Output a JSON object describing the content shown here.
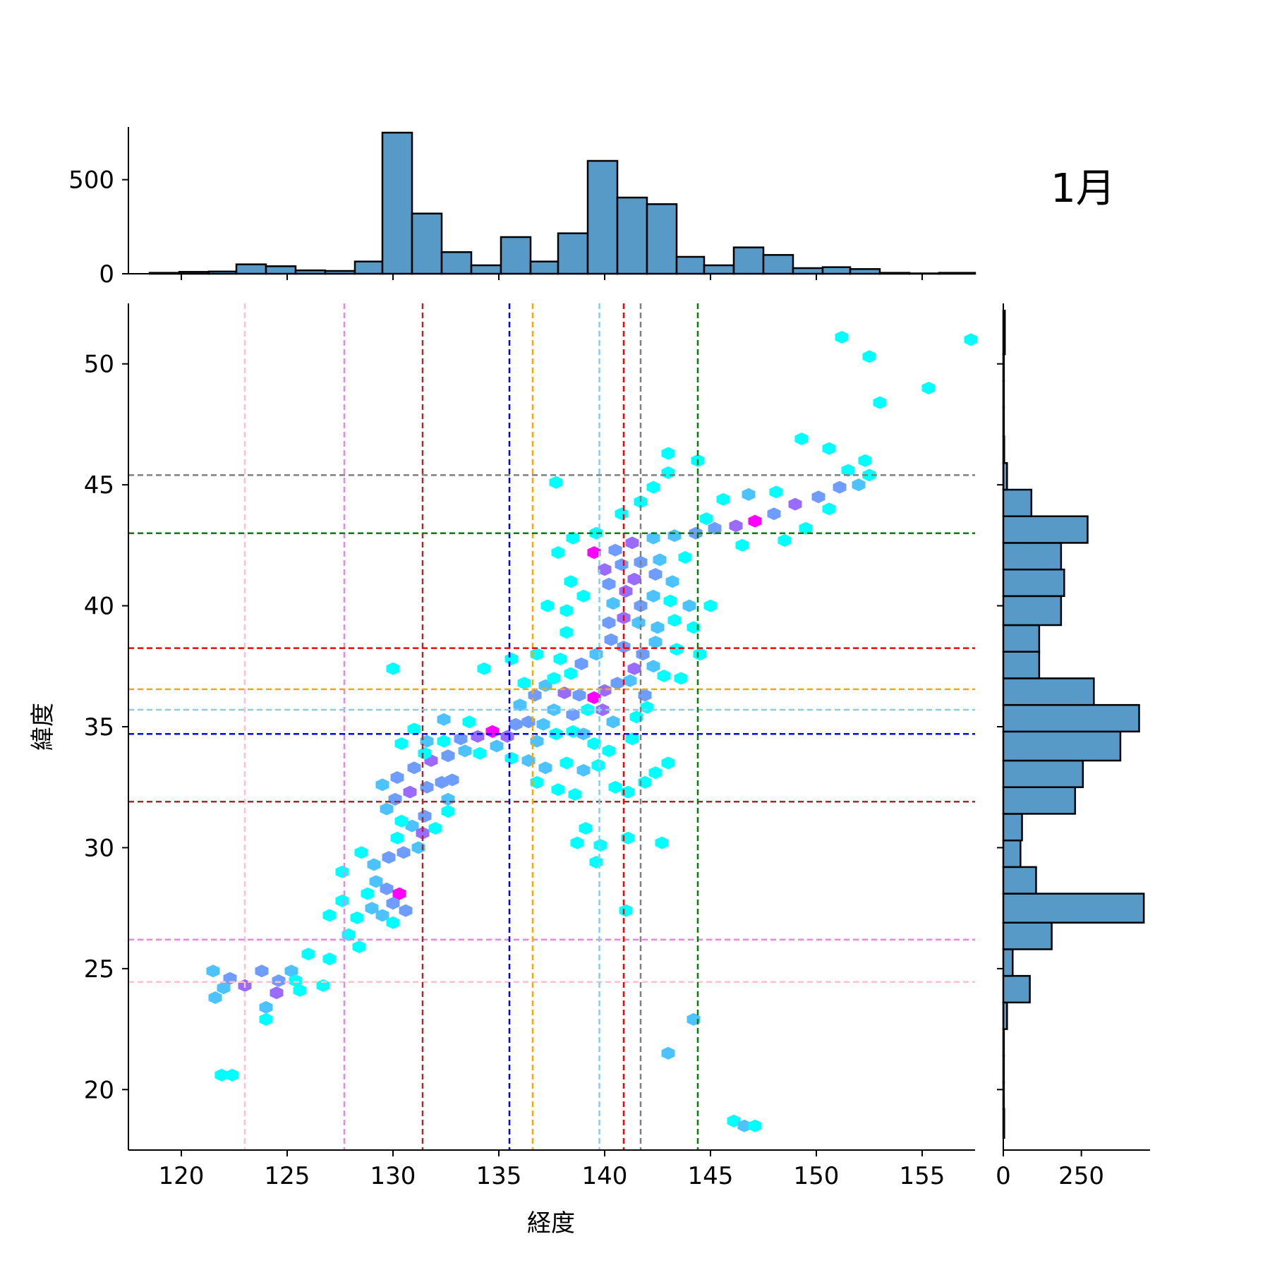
{
  "figure_label": "1月",
  "chart_data": [
    {
      "type": "hexbin",
      "xlabel": "経度",
      "ylabel": "緯度",
      "xlim": [
        117.5,
        157.5
      ],
      "ylim": [
        17.5,
        52.5
      ],
      "xticks": [
        120,
        125,
        130,
        135,
        140,
        145,
        150,
        155
      ],
      "yticks": [
        20,
        25,
        30,
        35,
        40,
        45,
        50
      ],
      "reference_lines": [
        {
          "color": "#ffc0cb",
          "lon": 123.0,
          "lat": 24.45
        },
        {
          "color": "#ee82ee",
          "lon": 127.7,
          "lat": 26.2
        },
        {
          "color": "#a52a2a",
          "lon": 131.4,
          "lat": 31.9
        },
        {
          "color": "#0000ff",
          "lon": 135.5,
          "lat": 34.7
        },
        {
          "color": "#ffa500",
          "lon": 136.6,
          "lat": 36.55
        },
        {
          "color": "#87ceeb",
          "lon": 139.75,
          "lat": 35.7
        },
        {
          "color": "#ff0000",
          "lon": 140.9,
          "lat": 38.25
        },
        {
          "color": "#808080",
          "lon": 141.7,
          "lat": 45.4
        },
        {
          "color": "#008000",
          "lon": 144.4,
          "lat": 43.0
        }
      ],
      "colormap": [
        "#00ffff",
        "#4cc3ff",
        "#6f9cff",
        "#9a6bff",
        "#ff00ff"
      ],
      "hexbins": [
        [
          121.5,
          24.9,
          1
        ],
        [
          122.3,
          24.6,
          2
        ],
        [
          123.0,
          24.3,
          3
        ],
        [
          123.8,
          24.9,
          2
        ],
        [
          124.6,
          24.5,
          2
        ],
        [
          125.2,
          24.9,
          1
        ],
        [
          121.6,
          23.8,
          1
        ],
        [
          122.0,
          24.2,
          1
        ],
        [
          124.0,
          23.4,
          1
        ],
        [
          124.0,
          22.9,
          0
        ],
        [
          125.6,
          24.1,
          0
        ],
        [
          126.0,
          25.6,
          0
        ],
        [
          126.7,
          24.3,
          0
        ],
        [
          122.4,
          20.6,
          0
        ],
        [
          121.9,
          20.6,
          0
        ],
        [
          124.5,
          24.0,
          3
        ],
        [
          125.4,
          24.5,
          0
        ],
        [
          127.0,
          27.2,
          0
        ],
        [
          127.6,
          27.8,
          0
        ],
        [
          128.3,
          27.1,
          0
        ],
        [
          127.9,
          26.4,
          0
        ],
        [
          128.8,
          28.1,
          0
        ],
        [
          129.2,
          28.6,
          1
        ],
        [
          129.7,
          28.3,
          2
        ],
        [
          130.3,
          28.1,
          4
        ],
        [
          130.0,
          27.7,
          2
        ],
        [
          129.5,
          27.2,
          1
        ],
        [
          130.6,
          27.4,
          2
        ],
        [
          130.0,
          26.9,
          0
        ],
        [
          127.6,
          29.0,
          0
        ],
        [
          128.4,
          25.9,
          0
        ],
        [
          127.0,
          25.4,
          0
        ],
        [
          129.0,
          27.5,
          1
        ],
        [
          128.5,
          29.8,
          0
        ],
        [
          129.1,
          29.3,
          1
        ],
        [
          129.8,
          29.6,
          2
        ],
        [
          130.5,
          29.8,
          2
        ],
        [
          131.2,
          30.0,
          1
        ],
        [
          130.2,
          30.4,
          0
        ],
        [
          130.9,
          30.9,
          1
        ],
        [
          131.5,
          31.3,
          2
        ],
        [
          130.4,
          31.1,
          0
        ],
        [
          129.7,
          31.6,
          1
        ],
        [
          130.1,
          32.0,
          2
        ],
        [
          130.8,
          32.3,
          3
        ],
        [
          131.6,
          32.5,
          2
        ],
        [
          132.3,
          32.7,
          2
        ],
        [
          132.6,
          31.5,
          0
        ],
        [
          131.4,
          30.6,
          3
        ],
        [
          132.0,
          30.8,
          0
        ],
        [
          129.5,
          32.6,
          1
        ],
        [
          130.2,
          32.9,
          2
        ],
        [
          131.0,
          33.3,
          2
        ],
        [
          131.8,
          33.6,
          3
        ],
        [
          132.6,
          33.8,
          2
        ],
        [
          133.4,
          34.0,
          1
        ],
        [
          132.8,
          32.8,
          2
        ],
        [
          131.5,
          33.9,
          0
        ],
        [
          130.4,
          34.3,
          0
        ],
        [
          131.6,
          34.4,
          1
        ],
        [
          132.4,
          34.4,
          0
        ],
        [
          133.2,
          34.5,
          2
        ],
        [
          134.0,
          34.6,
          3
        ],
        [
          134.7,
          34.8,
          4
        ],
        [
          135.4,
          34.6,
          3
        ],
        [
          134.9,
          34.2,
          1
        ],
        [
          134.1,
          33.9,
          0
        ],
        [
          133.6,
          35.2,
          0
        ],
        [
          132.4,
          35.3,
          1
        ],
        [
          135.8,
          35.1,
          2
        ],
        [
          136.4,
          35.2,
          2
        ],
        [
          137.1,
          35.1,
          1
        ],
        [
          137.7,
          34.7,
          0
        ],
        [
          138.5,
          34.8,
          0
        ],
        [
          136.8,
          34.4,
          1
        ],
        [
          135.6,
          33.7,
          0
        ],
        [
          136.4,
          33.6,
          1
        ],
        [
          137.2,
          33.3,
          1
        ],
        [
          138.2,
          33.5,
          0
        ],
        [
          139.0,
          33.2,
          1
        ],
        [
          139.7,
          33.4,
          0
        ],
        [
          136.8,
          32.7,
          0
        ],
        [
          137.8,
          32.4,
          0
        ],
        [
          138.6,
          32.2,
          0
        ],
        [
          140.5,
          32.5,
          0
        ],
        [
          141.1,
          32.3,
          0
        ],
        [
          141.9,
          32.7,
          0
        ],
        [
          142.4,
          33.1,
          0
        ],
        [
          143.0,
          33.5,
          0
        ],
        [
          136.0,
          35.9,
          1
        ],
        [
          136.7,
          36.3,
          2
        ],
        [
          137.2,
          36.7,
          1
        ],
        [
          137.6,
          37.0,
          0
        ],
        [
          138.1,
          36.4,
          3
        ],
        [
          138.8,
          36.3,
          2
        ],
        [
          139.5,
          36.2,
          4
        ],
        [
          140.0,
          36.5,
          3
        ],
        [
          140.6,
          36.8,
          2
        ],
        [
          141.2,
          36.9,
          1
        ],
        [
          139.2,
          35.7,
          0
        ],
        [
          138.5,
          35.5,
          2
        ],
        [
          139.9,
          35.7,
          3
        ],
        [
          140.4,
          35.2,
          1
        ],
        [
          139.0,
          34.7,
          1
        ],
        [
          139.5,
          34.3,
          0
        ],
        [
          140.2,
          34.0,
          0
        ],
        [
          141.3,
          34.5,
          0
        ],
        [
          141.5,
          35.4,
          0
        ],
        [
          142.0,
          35.8,
          0
        ],
        [
          137.6,
          35.7,
          1
        ],
        [
          141.9,
          36.3,
          2
        ],
        [
          141.4,
          37.4,
          3
        ],
        [
          142.3,
          37.5,
          1
        ],
        [
          142.8,
          37.1,
          0
        ],
        [
          143.6,
          37.0,
          0
        ],
        [
          141.8,
          38.0,
          2
        ],
        [
          142.4,
          38.5,
          1
        ],
        [
          143.4,
          38.2,
          0
        ],
        [
          144.5,
          38.0,
          0
        ],
        [
          140.9,
          38.3,
          2
        ],
        [
          140.3,
          38.6,
          2
        ],
        [
          139.6,
          38.0,
          1
        ],
        [
          138.9,
          37.6,
          2
        ],
        [
          138.4,
          37.2,
          0
        ],
        [
          137.9,
          37.8,
          0
        ],
        [
          136.8,
          38.0,
          0
        ],
        [
          138.2,
          38.9,
          0
        ],
        [
          140.2,
          39.3,
          2
        ],
        [
          140.9,
          39.5,
          3
        ],
        [
          141.6,
          39.3,
          1
        ],
        [
          142.5,
          39.1,
          1
        ],
        [
          143.3,
          39.4,
          0
        ],
        [
          144.2,
          39.1,
          0
        ],
        [
          140.4,
          40.1,
          1
        ],
        [
          141.0,
          40.6,
          3
        ],
        [
          141.7,
          40.0,
          2
        ],
        [
          142.3,
          40.4,
          1
        ],
        [
          143.1,
          40.2,
          0
        ],
        [
          144.0,
          40.0,
          1
        ],
        [
          145.0,
          40.0,
          0
        ],
        [
          140.2,
          40.9,
          2
        ],
        [
          141.4,
          41.1,
          3
        ],
        [
          142.4,
          41.3,
          2
        ],
        [
          143.2,
          41.0,
          1
        ],
        [
          140.0,
          41.5,
          3
        ],
        [
          140.8,
          41.7,
          2
        ],
        [
          141.7,
          41.8,
          2
        ],
        [
          142.6,
          41.9,
          1
        ],
        [
          143.8,
          42.0,
          0
        ],
        [
          139.5,
          42.2,
          4
        ],
        [
          140.5,
          42.3,
          2
        ],
        [
          141.3,
          42.6,
          3
        ],
        [
          142.3,
          42.8,
          1
        ],
        [
          143.3,
          42.9,
          1
        ],
        [
          144.3,
          43.0,
          2
        ],
        [
          145.2,
          43.2,
          2
        ],
        [
          146.2,
          43.3,
          3
        ],
        [
          147.1,
          43.5,
          4
        ],
        [
          148.0,
          43.8,
          2
        ],
        [
          149.0,
          44.2,
          3
        ],
        [
          150.1,
          44.5,
          2
        ],
        [
          151.1,
          44.9,
          2
        ],
        [
          152.0,
          45.0,
          1
        ],
        [
          152.5,
          45.4,
          0
        ],
        [
          151.5,
          45.6,
          0
        ],
        [
          150.6,
          44.0,
          0
        ],
        [
          149.5,
          43.2,
          0
        ],
        [
          148.5,
          42.7,
          0
        ],
        [
          146.5,
          42.5,
          0
        ],
        [
          144.8,
          43.6,
          0
        ],
        [
          145.6,
          44.4,
          0
        ],
        [
          146.8,
          44.6,
          1
        ],
        [
          148.1,
          44.7,
          0
        ],
        [
          143.0,
          45.5,
          0
        ],
        [
          142.3,
          44.9,
          0
        ],
        [
          141.7,
          44.3,
          0
        ],
        [
          140.8,
          43.8,
          0
        ],
        [
          139.6,
          43.0,
          0
        ],
        [
          138.5,
          42.8,
          0
        ],
        [
          137.8,
          42.2,
          0
        ],
        [
          138.4,
          41.0,
          0
        ],
        [
          139.0,
          40.4,
          0
        ],
        [
          138.2,
          39.8,
          0
        ],
        [
          137.3,
          40.0,
          0
        ],
        [
          139.1,
          30.8,
          0
        ],
        [
          139.6,
          29.4,
          0
        ],
        [
          138.7,
          30.2,
          0
        ],
        [
          139.8,
          30.1,
          0
        ],
        [
          141.1,
          30.4,
          0
        ],
        [
          142.7,
          30.2,
          0
        ],
        [
          141.0,
          27.4,
          0
        ],
        [
          143.0,
          21.5,
          1
        ],
        [
          144.2,
          22.9,
          1
        ],
        [
          146.1,
          18.7,
          0
        ],
        [
          146.6,
          18.5,
          1
        ],
        [
          147.1,
          18.5,
          0
        ],
        [
          137.7,
          45.1,
          0
        ],
        [
          143.0,
          46.3,
          0
        ],
        [
          144.4,
          46.0,
          0
        ],
        [
          149.3,
          46.9,
          0
        ],
        [
          150.6,
          46.5,
          0
        ],
        [
          152.3,
          46.0,
          0
        ],
        [
          153.0,
          48.4,
          0
        ],
        [
          152.5,
          50.3,
          0
        ],
        [
          151.2,
          51.1,
          0
        ],
        [
          155.3,
          49.0,
          0
        ],
        [
          157.3,
          51.0,
          0
        ],
        [
          134.3,
          37.4,
          0
        ],
        [
          136.2,
          36.8,
          0
        ],
        [
          135.6,
          37.8,
          0
        ],
        [
          130.0,
          37.4,
          0
        ],
        [
          132.6,
          32.0,
          1
        ],
        [
          131.0,
          34.9,
          0
        ]
      ]
    },
    {
      "type": "bar",
      "orientation": "vertical",
      "role": "top marginal histogram (longitude counts)",
      "ylim": [
        0,
        780
      ],
      "yticks": [
        0,
        500
      ],
      "bins": [
        [
          118.5,
          119.9,
          5
        ],
        [
          119.9,
          121.3,
          10
        ],
        [
          121.3,
          122.6,
          12
        ],
        [
          122.6,
          124.0,
          50
        ],
        [
          124.0,
          125.4,
          40
        ],
        [
          125.4,
          126.8,
          18
        ],
        [
          126.8,
          128.2,
          15
        ],
        [
          128.2,
          129.5,
          65
        ],
        [
          129.5,
          130.9,
          750
        ],
        [
          130.9,
          132.3,
          320
        ],
        [
          132.3,
          133.7,
          115
        ],
        [
          133.7,
          135.1,
          45
        ],
        [
          135.1,
          136.5,
          195
        ],
        [
          136.5,
          137.8,
          65
        ],
        [
          137.8,
          139.2,
          215
        ],
        [
          139.2,
          140.6,
          600
        ],
        [
          140.6,
          142.0,
          405
        ],
        [
          142.0,
          143.4,
          370
        ],
        [
          143.4,
          144.7,
          90
        ],
        [
          144.7,
          146.1,
          45
        ],
        [
          146.1,
          147.5,
          140
        ],
        [
          147.5,
          148.9,
          100
        ],
        [
          148.9,
          150.3,
          30
        ],
        [
          150.3,
          151.6,
          35
        ],
        [
          151.6,
          153.0,
          25
        ],
        [
          153.0,
          154.4,
          5
        ],
        [
          154.4,
          155.8,
          2
        ],
        [
          155.8,
          157.5,
          5
        ]
      ]
    },
    {
      "type": "bar",
      "orientation": "horizontal",
      "role": "right marginal histogram (latitude counts)",
      "xlim": [
        0,
        470
      ],
      "xticks": [
        0,
        250
      ],
      "bins": [
        [
          18.0,
          19.2,
          3
        ],
        [
          19.2,
          20.3,
          2
        ],
        [
          20.3,
          21.4,
          2
        ],
        [
          21.4,
          22.5,
          2
        ],
        [
          22.5,
          23.6,
          12
        ],
        [
          23.6,
          24.7,
          85
        ],
        [
          24.7,
          25.8,
          30
        ],
        [
          25.8,
          26.9,
          155
        ],
        [
          26.9,
          28.1,
          450
        ],
        [
          28.1,
          29.2,
          105
        ],
        [
          29.2,
          30.3,
          55
        ],
        [
          30.3,
          31.4,
          60
        ],
        [
          31.4,
          32.5,
          230
        ],
        [
          32.5,
          33.6,
          255
        ],
        [
          33.6,
          34.8,
          375
        ],
        [
          34.8,
          35.9,
          435
        ],
        [
          35.9,
          37.0,
          290
        ],
        [
          37.0,
          38.1,
          115
        ],
        [
          38.1,
          39.2,
          115
        ],
        [
          39.2,
          40.4,
          185
        ],
        [
          40.4,
          41.5,
          195
        ],
        [
          41.5,
          42.6,
          185
        ],
        [
          42.6,
          43.7,
          270
        ],
        [
          43.7,
          44.8,
          90
        ],
        [
          44.8,
          45.9,
          12
        ],
        [
          45.9,
          47.0,
          3
        ],
        [
          47.0,
          48.2,
          2
        ],
        [
          48.2,
          49.3,
          2
        ],
        [
          49.3,
          50.4,
          2
        ],
        [
          50.4,
          52.2,
          5
        ]
      ]
    }
  ]
}
